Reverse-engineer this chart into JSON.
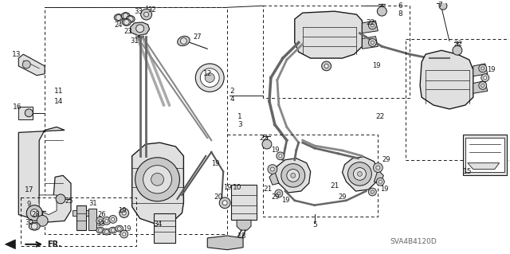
{
  "bg_color": "#ffffff",
  "line_color": "#1a1a1a",
  "text_color": "#1a1a1a",
  "gray_fill": "#c8c8c8",
  "light_gray": "#e0e0e0",
  "dark_gray": "#888888",
  "fig_width": 6.4,
  "fig_height": 3.19,
  "dpi": 100,
  "diagram_code": "SVA4B4120D"
}
